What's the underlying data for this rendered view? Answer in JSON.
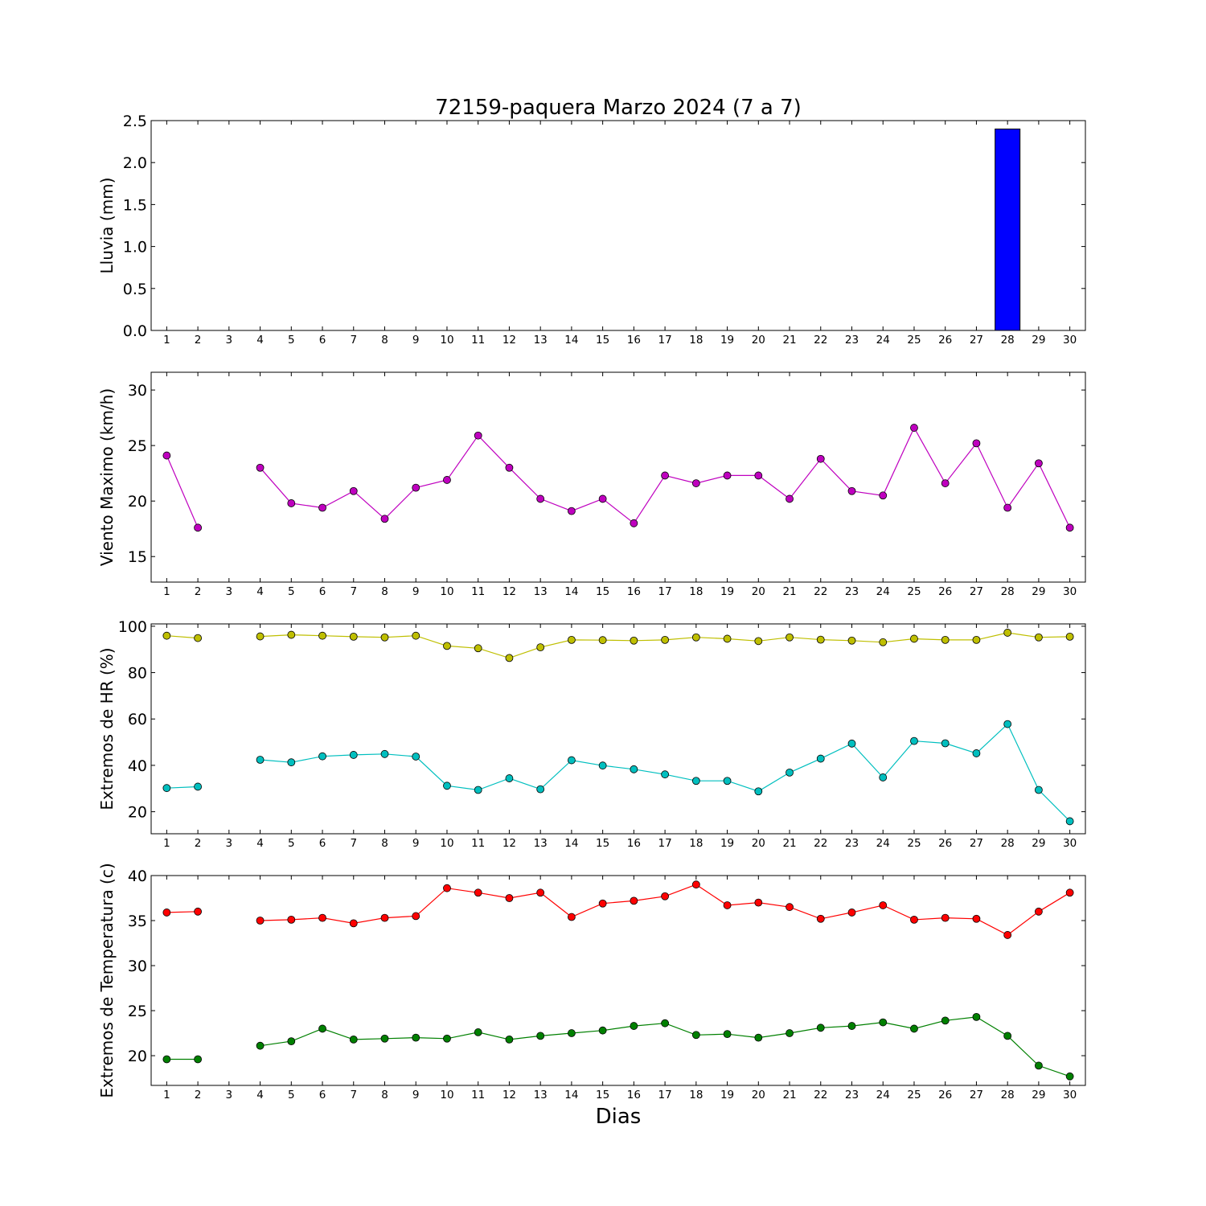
{
  "title": "72159-paquera Marzo 2024  (7 a 7)",
  "xlabel": "Dias",
  "chart_data": [
    {
      "type": "bar",
      "ylabel": "Lluvia (mm)",
      "ylim": [
        0,
        2.5
      ],
      "yticks": [
        "0.0",
        "0.5",
        "1.0",
        "1.5",
        "2.0",
        "2.5"
      ],
      "x": [
        1,
        2,
        3,
        4,
        5,
        6,
        7,
        8,
        9,
        10,
        11,
        12,
        13,
        14,
        15,
        16,
        17,
        18,
        19,
        20,
        21,
        22,
        23,
        24,
        25,
        26,
        27,
        28,
        29,
        30
      ],
      "series": [
        {
          "color": "#0000ff",
          "values": [
            0,
            0,
            0,
            0,
            0,
            0,
            0,
            0,
            0,
            0,
            0,
            0,
            0,
            0,
            0,
            0,
            0,
            0,
            0,
            0,
            0,
            0,
            0,
            0,
            0,
            0,
            0,
            2.4,
            0,
            0
          ]
        }
      ]
    },
    {
      "type": "line",
      "ylabel": "Viento Maximo (km/h)",
      "ylim": [
        12.7,
        31.6
      ],
      "yticks": [
        "15",
        "20",
        "25",
        "30"
      ],
      "x": [
        1,
        2,
        3,
        4,
        5,
        6,
        7,
        8,
        9,
        10,
        11,
        12,
        13,
        14,
        15,
        16,
        17,
        18,
        19,
        20,
        21,
        22,
        23,
        24,
        25,
        26,
        27,
        28,
        29,
        30
      ],
      "series": [
        {
          "color": "#bf00bf",
          "values": [
            24.1,
            17.6,
            null,
            23.0,
            19.8,
            19.4,
            20.9,
            18.4,
            21.2,
            21.9,
            25.9,
            23.0,
            20.2,
            19.1,
            20.2,
            18.0,
            22.3,
            21.6,
            22.3,
            22.3,
            20.2,
            23.8,
            20.9,
            20.5,
            26.6,
            21.6,
            25.2,
            19.4,
            23.4,
            17.6
          ]
        }
      ]
    },
    {
      "type": "line",
      "ylabel": "Extremos de HR (%)",
      "ylim": [
        10.5,
        101
      ],
      "yticks": [
        "20",
        "40",
        "60",
        "80",
        "100"
      ],
      "x": [
        1,
        2,
        3,
        4,
        5,
        6,
        7,
        8,
        9,
        10,
        11,
        12,
        13,
        14,
        15,
        16,
        17,
        18,
        19,
        20,
        21,
        22,
        23,
        24,
        25,
        26,
        27,
        28,
        29,
        30
      ],
      "series": [
        {
          "color": "#bfbf00",
          "values": [
            95.9,
            94.9,
            null,
            95.6,
            96.3,
            95.9,
            95.5,
            95.2,
            95.9,
            91.5,
            90.5,
            86.3,
            90.9,
            94.1,
            94.0,
            93.8,
            94.1,
            95.2,
            94.6,
            93.6,
            95.2,
            94.2,
            93.8,
            93.1,
            94.6,
            94.1,
            94.1,
            97.2,
            95.2,
            95.5
          ]
        },
        {
          "color": "#00bfbf",
          "values": [
            30.2,
            30.8,
            null,
            42.4,
            41.3,
            43.9,
            44.5,
            44.9,
            43.8,
            31.2,
            29.4,
            34.4,
            29.7,
            42.2,
            39.9,
            38.3,
            36.1,
            33.3,
            33.3,
            28.8,
            36.9,
            42.9,
            49.4,
            34.8,
            50.5,
            49.5,
            45.2,
            57.8,
            29.4,
            15.9
          ]
        }
      ]
    },
    {
      "type": "line",
      "ylabel": "Extremos de Temperatura (c)",
      "ylim": [
        16.7,
        40
      ],
      "yticks": [
        "20",
        "25",
        "30",
        "35",
        "40"
      ],
      "x": [
        1,
        2,
        3,
        4,
        5,
        6,
        7,
        8,
        9,
        10,
        11,
        12,
        13,
        14,
        15,
        16,
        17,
        18,
        19,
        20,
        21,
        22,
        23,
        24,
        25,
        26,
        27,
        28,
        29,
        30
      ],
      "series": [
        {
          "color": "#ff0000",
          "values": [
            35.9,
            36.0,
            null,
            35.0,
            35.1,
            35.3,
            34.7,
            35.3,
            35.5,
            38.6,
            38.1,
            37.5,
            38.1,
            35.4,
            36.9,
            37.2,
            37.7,
            39.0,
            36.7,
            37.0,
            36.5,
            35.2,
            35.9,
            36.7,
            35.1,
            35.3,
            35.2,
            33.4,
            36.0,
            38.1
          ]
        },
        {
          "color": "#008000",
          "values": [
            19.6,
            19.6,
            null,
            21.1,
            21.6,
            23.0,
            21.8,
            21.9,
            22.0,
            21.9,
            22.6,
            21.8,
            22.2,
            22.5,
            22.8,
            23.3,
            23.6,
            22.3,
            22.4,
            22.0,
            22.5,
            23.1,
            23.3,
            23.7,
            23.0,
            23.9,
            24.3,
            22.2,
            18.9,
            17.7
          ]
        }
      ]
    }
  ]
}
